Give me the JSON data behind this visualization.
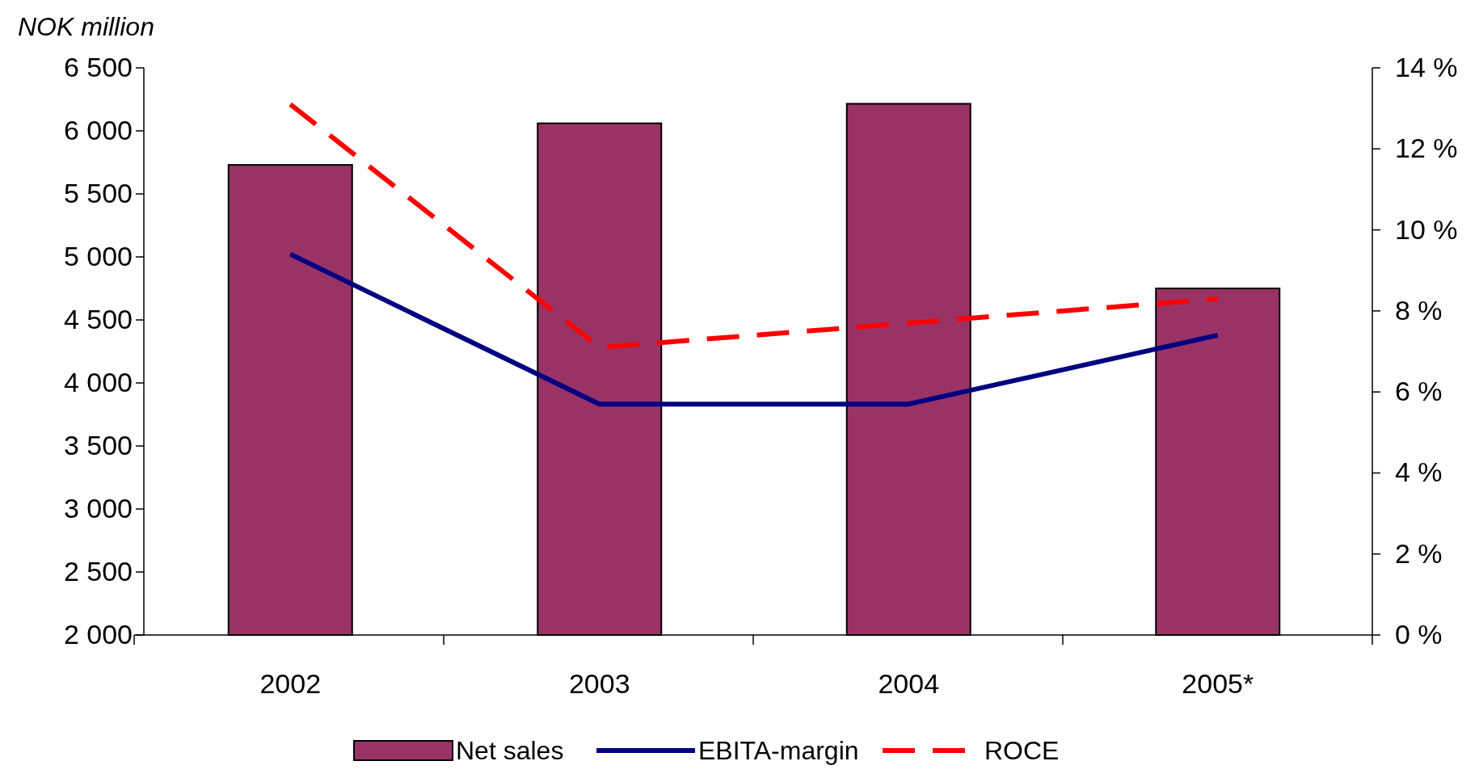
{
  "chart_data": {
    "type": "bar",
    "ylabel": "NOK million",
    "categories": [
      "2002",
      "2003",
      "2004",
      "2005*"
    ],
    "series": [
      {
        "name": "Net sales",
        "color": "#993366",
        "values": [
          5730,
          6060,
          6215,
          4750
        ]
      },
      {
        "name": "EBITA-margin",
        "type": "line",
        "axis": "y2",
        "color": "#000080",
        "line_style": "solid",
        "values": [
          9.4,
          5.7,
          5.7,
          7.4
        ]
      },
      {
        "name": "ROCE",
        "type": "line",
        "axis": "y2",
        "color": "#ff0000",
        "line_style": "dashed",
        "values": [
          13.1,
          7.1,
          7.7,
          8.3
        ]
      }
    ],
    "ylim": [
      2000,
      6500
    ],
    "yticks": [
      {
        "value": 2000,
        "label": "2 000"
      },
      {
        "value": 2500,
        "label": "2 500"
      },
      {
        "value": 3000,
        "label": "3 000"
      },
      {
        "value": 3500,
        "label": "3 500"
      },
      {
        "value": 4000,
        "label": "4 000"
      },
      {
        "value": 4500,
        "label": "4 500"
      },
      {
        "value": 5000,
        "label": "5 000"
      },
      {
        "value": 5500,
        "label": "5 500"
      },
      {
        "value": 6000,
        "label": "6 000"
      },
      {
        "value": 6500,
        "label": "6 500"
      }
    ],
    "y2lim": [
      0,
      14
    ],
    "y2ticks": [
      {
        "value": 0,
        "label": "0 %"
      },
      {
        "value": 2,
        "label": "2 %"
      },
      {
        "value": 4,
        "label": "4 %"
      },
      {
        "value": 6,
        "label": "6 %"
      },
      {
        "value": 8,
        "label": "8 %"
      },
      {
        "value": 10,
        "label": "10 %"
      },
      {
        "value": 12,
        "label": "12 %"
      },
      {
        "value": 14,
        "label": "14 %"
      }
    ],
    "grid": false,
    "legend": "bottom"
  }
}
